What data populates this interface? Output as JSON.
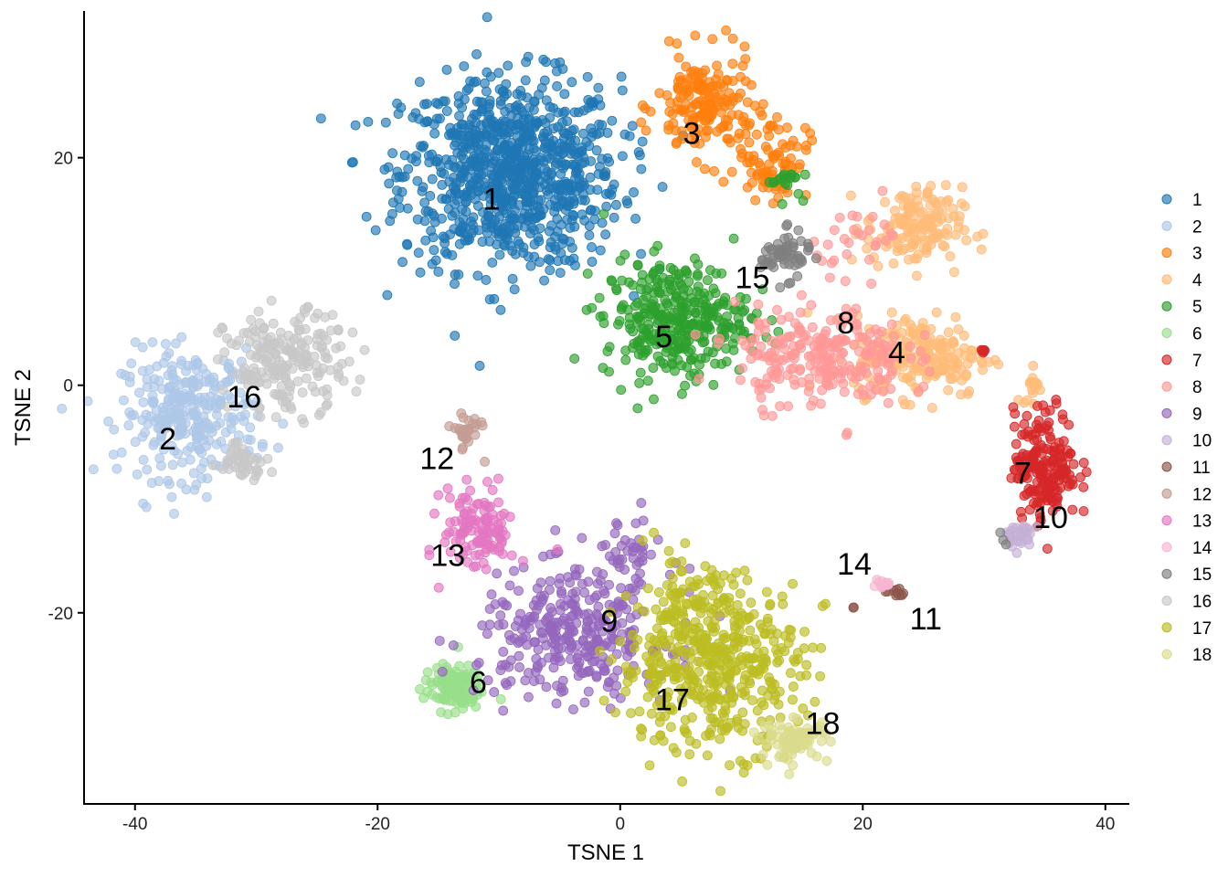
{
  "chart_data": {
    "type": "scatter",
    "xlabel": "TSNE 1",
    "ylabel": "TSNE 2",
    "xlim": [
      -44.2,
      41.9
    ],
    "ylim": [
      -36.8,
      32.9
    ],
    "xticks": [
      -40,
      -20,
      0,
      20,
      40
    ],
    "yticks": [
      -20,
      0,
      20
    ],
    "xtick_labels": [
      "-40",
      "-20",
      "0",
      "20",
      "40"
    ],
    "ytick_labels": [
      "-20",
      "0",
      "20"
    ],
    "grid": false,
    "legend_position": "right",
    "point_alpha": 0.65,
    "clusters": [
      {
        "name": "1",
        "color": "#1f77b4",
        "label_pos": [
          -10.6,
          16.4
        ],
        "blobs": [
          {
            "cx": -9,
            "cy": 18.6,
            "sx": 4.5,
            "sy": 4.2,
            "n": 900
          }
        ]
      },
      {
        "name": "2",
        "color": "#aec7e8",
        "label_pos": [
          -37.3,
          -4.7
        ],
        "blobs": [
          {
            "cx": -35.5,
            "cy": -2.5,
            "sx": 2.8,
            "sy": 2.8,
            "n": 300
          }
        ]
      },
      {
        "name": "3",
        "color": "#ff7f0e",
        "label_pos": [
          5.9,
          22.2
        ],
        "blobs": [
          {
            "cx": 7.0,
            "cy": 24.5,
            "sx": 2.0,
            "sy": 2.3,
            "n": 180
          },
          {
            "cx": 12.5,
            "cy": 20.0,
            "sx": 1.5,
            "sy": 1.8,
            "n": 80
          }
        ]
      },
      {
        "name": "4",
        "color": "#ffbb78",
        "label_pos": [
          22.8,
          2.9
        ],
        "blobs": [
          {
            "cx": 24.2,
            "cy": 13.8,
            "sx": 2.0,
            "sy": 1.8,
            "n": 150
          },
          {
            "cx": 24.9,
            "cy": 2.6,
            "sx": 2.8,
            "sy": 1.8,
            "n": 200
          },
          {
            "cx": 34.0,
            "cy": 0.0,
            "sx": 0.4,
            "sy": 1.0,
            "n": 15
          }
        ]
      },
      {
        "name": "5",
        "color": "#2ca02c",
        "label_pos": [
          3.6,
          4.3
        ],
        "blobs": [
          {
            "cx": 4.6,
            "cy": 5.8,
            "sx": 3.0,
            "sy": 2.6,
            "n": 350
          },
          {
            "cx": 13.5,
            "cy": 18.0,
            "sx": 0.7,
            "sy": 0.7,
            "n": 20
          }
        ]
      },
      {
        "name": "6",
        "color": "#98df8a",
        "label_pos": [
          -11.7,
          -26.1
        ],
        "blobs": [
          {
            "cx": -13.8,
            "cy": -26.6,
            "sx": 1.2,
            "sy": 1.0,
            "n": 120
          }
        ]
      },
      {
        "name": "7",
        "color": "#d62728",
        "label_pos": [
          33.2,
          -7.7
        ],
        "blobs": [
          {
            "cx": 35.1,
            "cy": -7.0,
            "sx": 1.3,
            "sy": 2.4,
            "n": 200
          },
          {
            "cx": 29.8,
            "cy": 3.0,
            "sx": 0.3,
            "sy": 0.2,
            "n": 6
          }
        ]
      },
      {
        "name": "8",
        "color": "#ff9896",
        "label_pos": [
          18.6,
          5.5
        ],
        "blobs": [
          {
            "cx": 16.5,
            "cy": 2.5,
            "sx": 3.5,
            "sy": 2.2,
            "n": 250
          },
          {
            "cx": 20.0,
            "cy": 13.0,
            "sx": 2.0,
            "sy": 1.5,
            "n": 30
          }
        ]
      },
      {
        "name": "9",
        "color": "#9467bd",
        "label_pos": [
          -0.9,
          -20.7
        ],
        "blobs": [
          {
            "cx": -3.7,
            "cy": -22.0,
            "sx": 4.0,
            "sy": 2.8,
            "n": 330
          },
          {
            "cx": 0.5,
            "cy": -14.5,
            "sx": 1.5,
            "sy": 1.5,
            "n": 40
          }
        ]
      },
      {
        "name": "10",
        "color": "#c5b0d5",
        "label_pos": [
          35.5,
          -11.6
        ],
        "blobs": [
          {
            "cx": 32.9,
            "cy": -13.3,
            "sx": 0.8,
            "sy": 0.6,
            "n": 30
          }
        ]
      },
      {
        "name": "11",
        "color": "#8c564b",
        "label_pos": [
          25.2,
          -20.5
        ],
        "blobs": [
          {
            "cx": 22.7,
            "cy": -18.3,
            "sx": 0.4,
            "sy": 0.2,
            "n": 10
          },
          {
            "cx": 19.3,
            "cy": -19.5,
            "sx": 0.1,
            "sy": 0.1,
            "n": 2
          }
        ]
      },
      {
        "name": "12",
        "color": "#c49c94",
        "label_pos": [
          -15.1,
          -6.4
        ],
        "blobs": [
          {
            "cx": -12.7,
            "cy": -4.0,
            "sx": 0.6,
            "sy": 0.9,
            "n": 30
          }
        ]
      },
      {
        "name": "13",
        "color": "#e377c2",
        "label_pos": [
          -14.2,
          -14.9
        ],
        "blobs": [
          {
            "cx": -11.6,
            "cy": -12.7,
            "sx": 1.5,
            "sy": 1.9,
            "n": 120
          }
        ]
      },
      {
        "name": "14",
        "color": "#f7b6d2",
        "label_pos": [
          19.3,
          -15.7
        ],
        "blobs": [
          {
            "cx": 21.6,
            "cy": -17.5,
            "sx": 0.4,
            "sy": 0.2,
            "n": 15
          }
        ]
      },
      {
        "name": "15",
        "color": "#7f7f7f",
        "label_pos": [
          10.9,
          9.5
        ],
        "blobs": [
          {
            "cx": 13.6,
            "cy": 11.4,
            "sx": 1.0,
            "sy": 1.0,
            "n": 60
          },
          {
            "cx": 31.5,
            "cy": -13.5,
            "sx": 0.3,
            "sy": 0.4,
            "n": 3
          }
        ]
      },
      {
        "name": "16",
        "color": "#c7c7c7",
        "label_pos": [
          -31.0,
          -1.0
        ],
        "blobs": [
          {
            "cx": -27.5,
            "cy": 2.0,
            "sx": 2.5,
            "sy": 2.2,
            "n": 200
          },
          {
            "cx": -31.0,
            "cy": -6.5,
            "sx": 1.0,
            "sy": 0.8,
            "n": 40
          }
        ]
      },
      {
        "name": "17",
        "color": "#bcbd22",
        "label_pos": [
          4.3,
          -27.6
        ],
        "blobs": [
          {
            "cx": 7.5,
            "cy": -24.5,
            "sx": 3.8,
            "sy": 3.8,
            "n": 480
          },
          {
            "cx": 5.5,
            "cy": -18.5,
            "sx": 1.5,
            "sy": 1.5,
            "n": 40
          }
        ]
      },
      {
        "name": "18",
        "color": "#dbdb8d",
        "label_pos": [
          16.7,
          -29.7
        ],
        "blobs": [
          {
            "cx": 14.4,
            "cy": -31.2,
            "sx": 1.4,
            "sy": 0.9,
            "n": 80
          }
        ]
      }
    ]
  }
}
